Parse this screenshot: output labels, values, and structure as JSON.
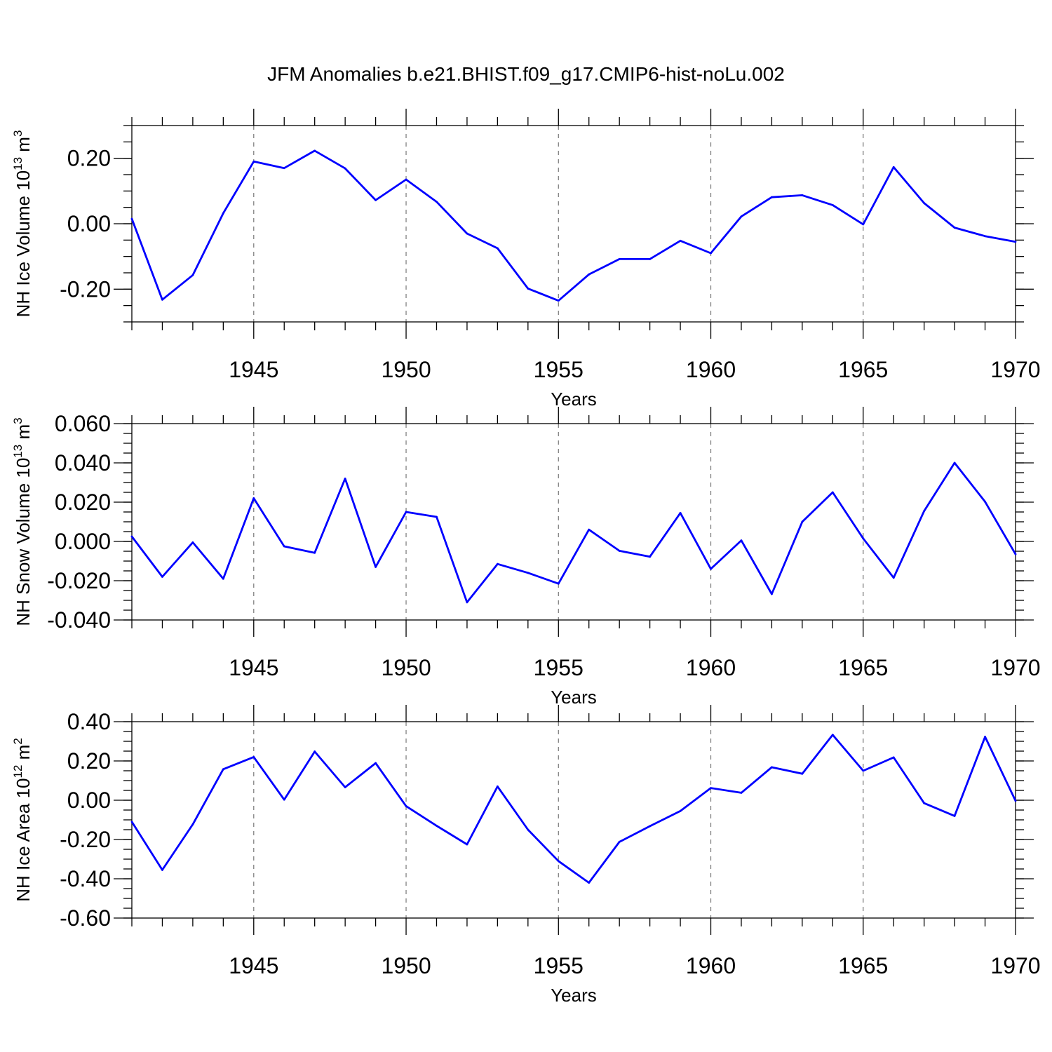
{
  "title": "JFM Anomalies b.e21.BHIST.f09_g17.CMIP6-hist-noLu.002",
  "line_color": "#0000ff",
  "chart_data": [
    {
      "type": "line",
      "id": "ice-volume",
      "ylabel_main": "NH Ice Volume 10",
      "ylabel_exp": "13",
      "ylabel_unit": " m",
      "ylabel_unit_exp": "3",
      "xlabel": "Years",
      "xlim": [
        1941,
        1970
      ],
      "ylim": [
        -0.3,
        0.3
      ],
      "yticks": [
        -0.2,
        0.0,
        0.2
      ],
      "ytick_labels": [
        "-0.20",
        "0.00",
        "0.20"
      ],
      "yminor_step": 0.05,
      "xticks": [
        1945,
        1950,
        1955,
        1960,
        1965,
        1970
      ],
      "xtick_labels": [
        "1945",
        "1950",
        "1955",
        "1960",
        "1965",
        "1970"
      ],
      "grid_x": [
        1945,
        1950,
        1955,
        1960,
        1965
      ],
      "x": [
        1941,
        1942,
        1943,
        1944,
        1945,
        1946,
        1947,
        1948,
        1949,
        1950,
        1951,
        1952,
        1953,
        1954,
        1955,
        1956,
        1957,
        1958,
        1959,
        1960,
        1961,
        1962,
        1963,
        1964,
        1965,
        1966,
        1967,
        1968,
        1969,
        1970
      ],
      "values": [
        0.015,
        -0.232,
        -0.157,
        0.032,
        0.19,
        0.17,
        0.223,
        0.169,
        0.072,
        0.135,
        0.067,
        -0.03,
        -0.075,
        -0.198,
        -0.235,
        -0.155,
        -0.108,
        -0.108,
        -0.052,
        -0.09,
        0.022,
        0.081,
        0.087,
        0.057,
        -0.002,
        0.173,
        0.063,
        -0.012,
        -0.038,
        -0.055
      ]
    },
    {
      "type": "line",
      "id": "snow-volume",
      "ylabel_main": "NH Snow Volume 10",
      "ylabel_exp": "13",
      "ylabel_unit": " m",
      "ylabel_unit_exp": "3",
      "xlabel": "Years",
      "xlim": [
        1941,
        1970
      ],
      "ylim": [
        -0.04,
        0.06
      ],
      "yticks": [
        -0.04,
        -0.02,
        0.0,
        0.02,
        0.04,
        0.06
      ],
      "ytick_labels": [
        "-0.040",
        "-0.020",
        "0.000",
        "0.020",
        "0.040",
        "0.060"
      ],
      "yminor_step": 0.005,
      "xticks": [
        1945,
        1950,
        1955,
        1960,
        1965,
        1970
      ],
      "xtick_labels": [
        "1945",
        "1950",
        "1955",
        "1960",
        "1965",
        "1970"
      ],
      "grid_x": [
        1945,
        1950,
        1955,
        1960,
        1965
      ],
      "x": [
        1941,
        1942,
        1943,
        1944,
        1945,
        1946,
        1947,
        1948,
        1949,
        1950,
        1951,
        1952,
        1953,
        1954,
        1955,
        1956,
        1957,
        1958,
        1959,
        1960,
        1961,
        1962,
        1963,
        1964,
        1965,
        1966,
        1967,
        1968,
        1969,
        1970
      ],
      "values": [
        0.0025,
        -0.018,
        -0.0005,
        -0.019,
        0.022,
        -0.0025,
        -0.0058,
        0.032,
        -0.013,
        0.015,
        0.0125,
        -0.031,
        -0.0115,
        -0.016,
        -0.0215,
        0.006,
        -0.0048,
        -0.0078,
        0.0145,
        -0.014,
        0.0005,
        -0.0268,
        0.01,
        0.025,
        0.0015,
        -0.0185,
        0.0155,
        0.04,
        0.0202,
        -0.0065
      ]
    },
    {
      "type": "line",
      "id": "ice-area",
      "ylabel_main": "NH Ice Area 10",
      "ylabel_exp": "12",
      "ylabel_unit": " m",
      "ylabel_unit_exp": "2",
      "xlabel": "Years",
      "xlim": [
        1941,
        1970
      ],
      "ylim": [
        -0.6,
        0.4
      ],
      "yticks": [
        -0.6,
        -0.4,
        -0.2,
        0.0,
        0.2,
        0.4
      ],
      "ytick_labels": [
        "-0.60",
        "-0.40",
        "-0.20",
        "0.00",
        "0.20",
        "0.40"
      ],
      "yminor_step": 0.05,
      "xticks": [
        1945,
        1950,
        1955,
        1960,
        1965,
        1970
      ],
      "xtick_labels": [
        "1945",
        "1950",
        "1955",
        "1960",
        "1965",
        "1970"
      ],
      "grid_x": [
        1945,
        1950,
        1955,
        1960,
        1965
      ],
      "x": [
        1941,
        1942,
        1943,
        1944,
        1945,
        1946,
        1947,
        1948,
        1949,
        1950,
        1951,
        1952,
        1953,
        1954,
        1955,
        1956,
        1957,
        1958,
        1959,
        1960,
        1961,
        1962,
        1963,
        1964,
        1965,
        1966,
        1967,
        1968,
        1969,
        1970
      ],
      "values": [
        -0.11,
        -0.355,
        -0.123,
        0.158,
        0.22,
        0.003,
        0.248,
        0.066,
        0.189,
        -0.03,
        -0.13,
        -0.225,
        0.07,
        -0.15,
        -0.31,
        -0.42,
        -0.212,
        -0.132,
        -0.055,
        0.062,
        0.038,
        0.168,
        0.135,
        0.333,
        0.15,
        0.218,
        -0.015,
        -0.08,
        0.323,
        -0.003
      ]
    }
  ]
}
